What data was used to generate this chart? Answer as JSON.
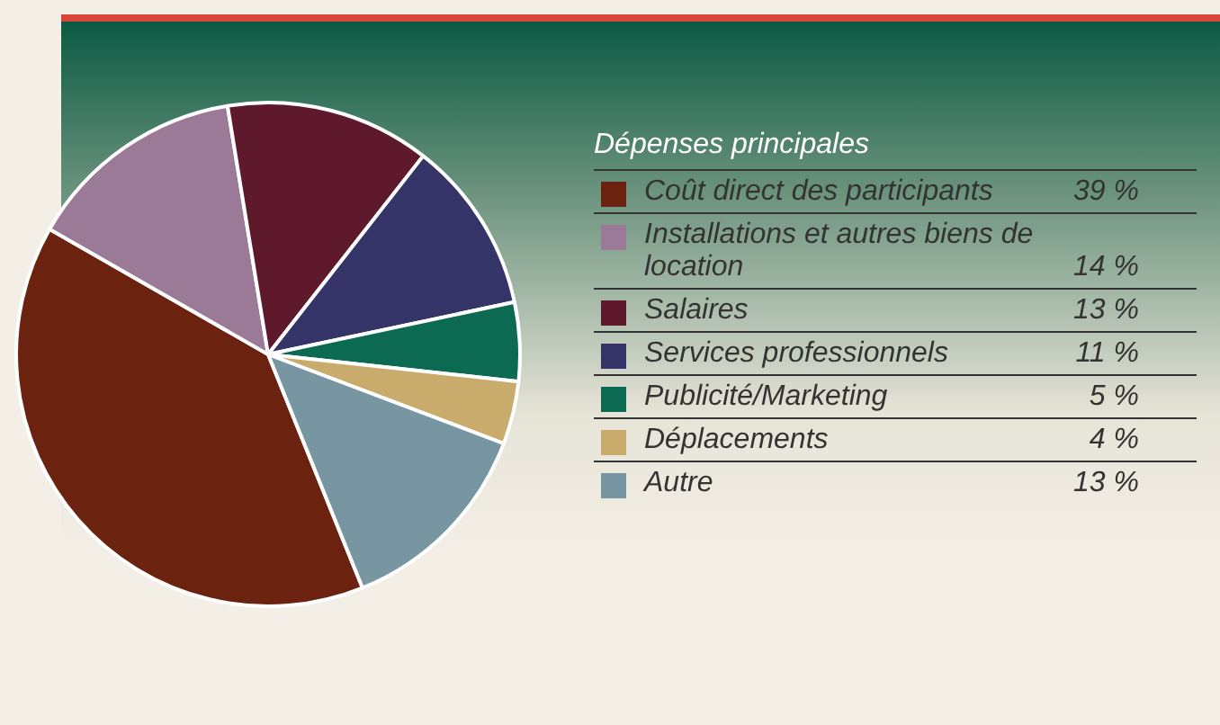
{
  "chart_data": {
    "type": "pie",
    "legend_title": "Dépenses principales",
    "categories": [
      "Coût direct des participants",
      "Installations et autres biens de location",
      "Salaires",
      "Services professionnels",
      "Publicité/Marketing",
      "Déplacements",
      "Autre"
    ],
    "values": [
      39,
      14,
      13,
      11,
      5,
      4,
      13
    ],
    "colors": [
      "#6b2310",
      "#9b7a98",
      "#5e1a2c",
      "#343468",
      "#0d6a52",
      "#c9ab6c",
      "#7896a2"
    ],
    "value_labels": [
      "39 %",
      "14 %",
      "13 %",
      "11 %",
      "5 %",
      "4 %",
      "13 %"
    ],
    "legend": "right"
  }
}
